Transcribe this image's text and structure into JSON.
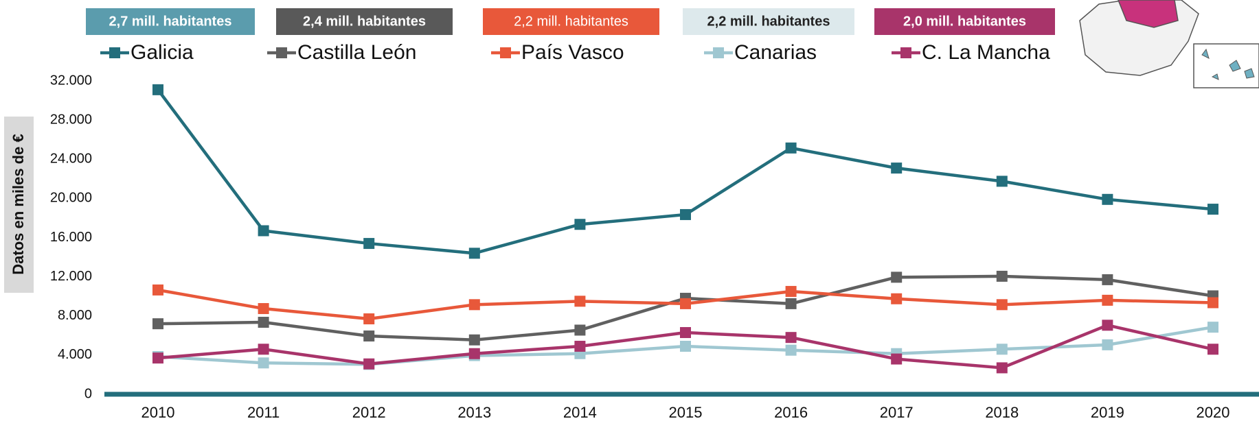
{
  "chart_data": {
    "type": "line",
    "y_label": "Datos en miles de €",
    "badges": [
      "2,7 mill. habitantes",
      "2,4 mill. habitantes",
      "2,2 mill. habitantes",
      "2,2 mill. habitantes",
      "2,0 mill. habitantes"
    ],
    "badge_colors": [
      "#5b9cad",
      "#595959",
      "#e8583a",
      "#dde9ec",
      "#a8346a"
    ],
    "badge_text_colors": [
      "#ffffff",
      "#ffffff",
      "#ffffff",
      "#222222",
      "#ffffff"
    ],
    "categories": [
      "2010",
      "2011",
      "2012",
      "2013",
      "2014",
      "2015",
      "2016",
      "2017",
      "2018",
      "2019",
      "2020"
    ],
    "series": [
      {
        "name": "Galicia",
        "color": "#236e7c",
        "values": [
          31100,
          16700,
          15400,
          14400,
          17350,
          18350,
          25150,
          23100,
          21750,
          19900,
          18900
        ]
      },
      {
        "name": "Castilla León",
        "color": "#606060",
        "values": [
          7200,
          7350,
          5950,
          5550,
          6550,
          9800,
          9250,
          11950,
          12050,
          11700,
          10050
        ]
      },
      {
        "name": "País Vasco",
        "color": "#e8583a",
        "values": [
          10650,
          8750,
          7700,
          9150,
          9500,
          9250,
          10500,
          9750,
          9150,
          9600,
          9350
        ]
      },
      {
        "name": "Canarias",
        "color": "#9fc7d1",
        "values": [
          3850,
          3200,
          3050,
          3950,
          4150,
          4900,
          4500,
          4150,
          4600,
          5050,
          6850
        ]
      },
      {
        "name": "C. La Mancha",
        "color": "#a8346a",
        "values": [
          3700,
          4600,
          3100,
          4150,
          4900,
          6300,
          5800,
          3600,
          2700,
          7050,
          4600
        ]
      }
    ],
    "ylim": [
      0,
      32000
    ],
    "yticks": [
      0,
      {
        "value": 4000,
        "label": "4.000"
      },
      {
        "value": 8000,
        "label": "8.000"
      },
      {
        "value": 12000,
        "label": "12.000"
      },
      {
        "value": 16000,
        "label": "16.000"
      },
      {
        "value": 20000,
        "label": "20.000"
      },
      {
        "value": 24000,
        "label": "24.000"
      },
      {
        "value": 28000,
        "label": "28.000"
      },
      {
        "value": 32000,
        "label": "32.000"
      }
    ],
    "grid": false
  }
}
